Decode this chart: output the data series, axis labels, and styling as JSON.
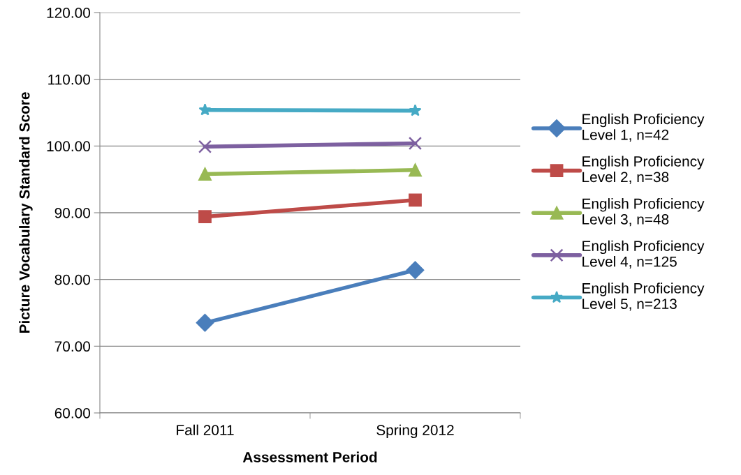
{
  "chart_data": {
    "type": "line",
    "xlabel": "Assessment Period",
    "ylabel": "Picture Vocabulary Standard Score",
    "categories": [
      "Fall 2011",
      "Spring 2012"
    ],
    "ylim": [
      60,
      120
    ],
    "yticks": [
      {
        "value": 60,
        "label": "60.00"
      },
      {
        "value": 70,
        "label": "70.00"
      },
      {
        "value": 80,
        "label": "80.00"
      },
      {
        "value": 90,
        "label": "90.00"
      },
      {
        "value": 100,
        "label": "100.00"
      },
      {
        "value": 110,
        "label": "110.00"
      },
      {
        "value": 120,
        "label": "120.00"
      }
    ],
    "grid": "y",
    "legend": "right",
    "line_style": "solid",
    "series": [
      {
        "name": "English Proficiency\nLevel 1, n=42",
        "color": "#4a7ebb",
        "marker": "diamond",
        "values": [
          73.5,
          81.4
        ]
      },
      {
        "name": "English Proficiency\nLevel 2, n=38",
        "color": "#be4b48",
        "marker": "square",
        "values": [
          89.4,
          91.9
        ]
      },
      {
        "name": "English Proficiency\nLevel 3, n=48",
        "color": "#98b954",
        "marker": "triangle",
        "values": [
          95.8,
          96.4
        ]
      },
      {
        "name": "English Proficiency\nLevel 4, n=125",
        "color": "#7d60a0",
        "marker": "cross",
        "values": [
          99.9,
          100.4
        ]
      },
      {
        "name": "English Proficiency\nLevel 5, n=213",
        "color": "#46aac5",
        "marker": "star",
        "values": [
          105.4,
          105.3
        ]
      }
    ]
  }
}
